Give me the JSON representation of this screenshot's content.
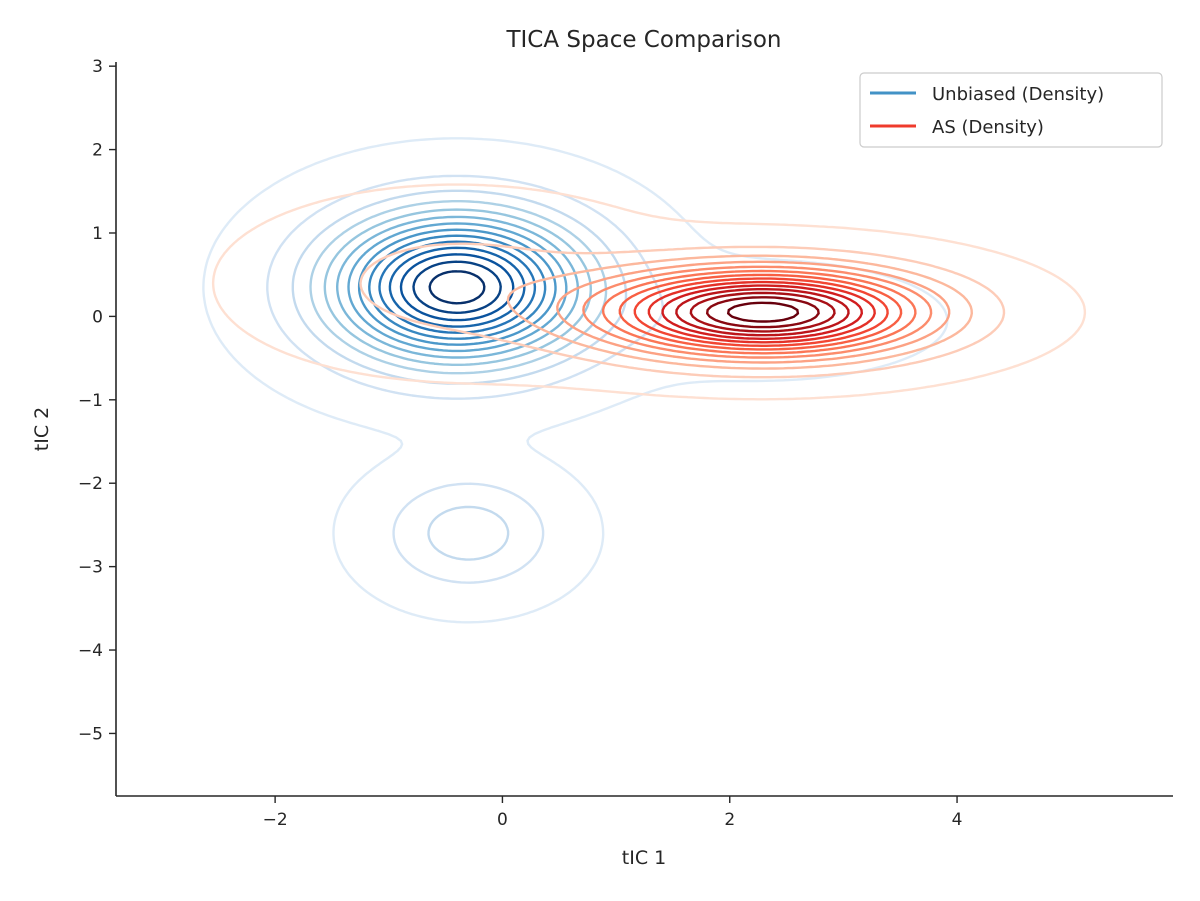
{
  "chart_data": {
    "type": "contour",
    "title": "TICA Space Comparison",
    "xlabel": "tIC 1",
    "ylabel": "tIC 2",
    "xlim": [
      -3.4,
      5.9
    ],
    "ylim": [
      -5.75,
      3.05
    ],
    "xticks": [
      {
        "value": -2,
        "label": "−2"
      },
      {
        "value": 0,
        "label": "0"
      },
      {
        "value": 2,
        "label": "2"
      },
      {
        "value": 4,
        "label": "4"
      }
    ],
    "yticks": [
      {
        "value": 3,
        "label": "3"
      },
      {
        "value": 2,
        "label": "2"
      },
      {
        "value": 1,
        "label": "1"
      },
      {
        "value": 0,
        "label": "0"
      },
      {
        "value": -1,
        "label": "−1"
      },
      {
        "value": -2,
        "label": "−2"
      },
      {
        "value": -3,
        "label": "−3"
      },
      {
        "value": -4,
        "label": "−4"
      },
      {
        "value": -5,
        "label": "−5"
      }
    ],
    "grid": false,
    "legend_position": "top-right",
    "series": [
      {
        "name": "Unbiased (Density)",
        "color": "#4292c6",
        "colormap": [
          "#deebf7",
          "#c6dbef",
          "#9ecae1",
          "#6baed6",
          "#4292c6",
          "#2171b5",
          "#08519c",
          "#08306b"
        ],
        "modes": [
          {
            "x": -0.4,
            "y": 0.35,
            "sx": 0.75,
            "sy": 0.6,
            "weight": 1.0
          },
          {
            "x": -0.3,
            "y": -2.6,
            "sx": 0.5,
            "sy": 0.45,
            "weight": 0.2
          },
          {
            "x": 2.3,
            "y": -0.05,
            "sx": 0.9,
            "sy": 0.4,
            "weight": 0.06
          }
        ],
        "levels": 14
      },
      {
        "name": "AS (Density)",
        "color": "#ef3b2c",
        "colormap": [
          "#fee0d2",
          "#fcbba1",
          "#fc9272",
          "#fb6a4a",
          "#ef3b2c",
          "#cb181d",
          "#a50f15",
          "#67000d"
        ],
        "modes": [
          {
            "x": 2.3,
            "y": 0.05,
            "sx": 0.95,
            "sy": 0.35,
            "weight": 1.0
          },
          {
            "x": -0.4,
            "y": 0.4,
            "sx": 1.0,
            "sy": 0.55,
            "weight": 0.12
          }
        ],
        "levels": 14
      }
    ]
  }
}
